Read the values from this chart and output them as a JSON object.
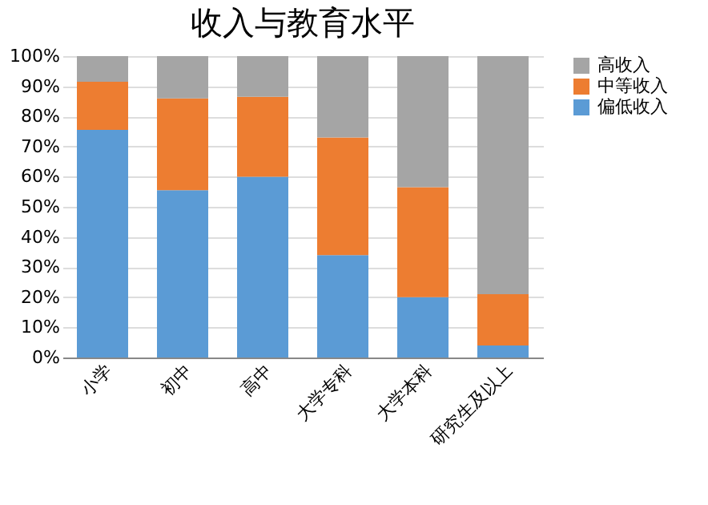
{
  "chart_data": {
    "type": "bar",
    "title": "收入与教育水平",
    "stacked": true,
    "categories": [
      "小学",
      "初中",
      "高中",
      "大学专科",
      "大学本科",
      "研究生及以上"
    ],
    "series": [
      {
        "name": "偏低收入",
        "color": "#5b9bd5",
        "values": [
          75.5,
          55.5,
          60,
          34,
          20,
          4
        ]
      },
      {
        "name": "中等收入",
        "color": "#ed7d31",
        "values": [
          16,
          30.5,
          26.5,
          39,
          36.5,
          17
        ]
      },
      {
        "name": "高收入",
        "color": "#a5a5a5",
        "values": [
          8.5,
          14,
          13.5,
          27,
          43.5,
          79
        ]
      }
    ],
    "ylim": [
      0,
      100
    ],
    "yticks": [
      {
        "value": 0,
        "label": "0%"
      },
      {
        "value": 10,
        "label": "10%"
      },
      {
        "value": 20,
        "label": "20%"
      },
      {
        "value": 30,
        "label": "30%"
      },
      {
        "value": 40,
        "label": "40%"
      },
      {
        "value": 50,
        "label": "50%"
      },
      {
        "value": 60,
        "label": "60%"
      },
      {
        "value": 70,
        "label": "70%"
      },
      {
        "value": 80,
        "label": "80%"
      },
      {
        "value": 90,
        "label": "90%"
      },
      {
        "value": 100,
        "label": "100%"
      }
    ],
    "grid": "y",
    "legend": "right"
  }
}
